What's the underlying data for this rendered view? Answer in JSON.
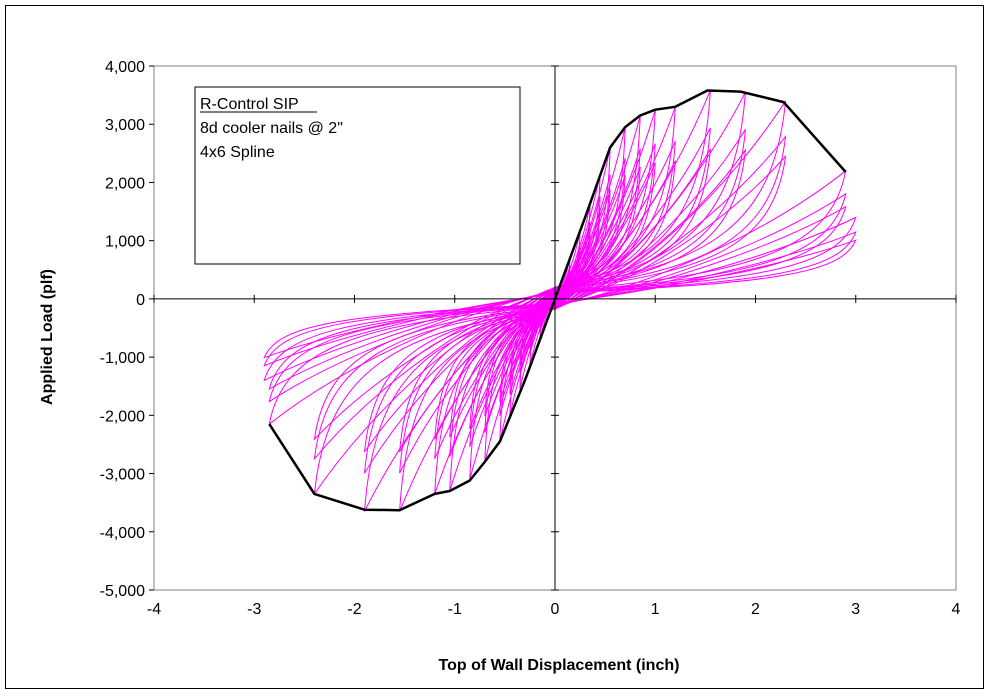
{
  "chart_data": {
    "type": "line",
    "title": "",
    "xlabel": "Top of Wall Displacement (inch)",
    "ylabel": "Applied Load (plf)",
    "xlim": [
      -4,
      4
    ],
    "ylim": [
      -5000,
      4000
    ],
    "x_ticks": [
      -4,
      -3,
      -2,
      -1,
      0,
      1,
      2,
      3,
      4
    ],
    "x_tick_labels": [
      "-4",
      "-3",
      "-2",
      "-1",
      "0",
      "1",
      "2",
      "3",
      "4"
    ],
    "y_ticks": [
      -5000,
      -4000,
      -3000,
      -2000,
      -1000,
      0,
      1000,
      2000,
      3000,
      4000
    ],
    "y_tick_labels": [
      "-5,000",
      "-4,000",
      "-3,000",
      "-2,000",
      "-1,000",
      "0",
      "1,000",
      "2,000",
      "3,000",
      "4,000"
    ],
    "grid": false,
    "annotation": {
      "lines": [
        "R-Control SIP",
        "8d cooler nails @ 2\"",
        "4x6 Spline"
      ],
      "underline_first": true
    },
    "series": [
      {
        "color": "#ff00ff",
        "style": "hysteresis-loops",
        "cycles": [
          {
            "peak_disp": 0.15,
            "peak_load": 700,
            "neg_disp": -0.15,
            "neg_load": -700
          },
          {
            "peak_disp": 0.25,
            "peak_load": 1150,
            "neg_disp": -0.25,
            "neg_load": -1150
          },
          {
            "peak_disp": 0.35,
            "peak_load": 1600,
            "neg_disp": -0.35,
            "neg_load": -1550
          },
          {
            "peak_disp": 0.45,
            "peak_load": 2150,
            "neg_disp": -0.45,
            "neg_load": -2000
          },
          {
            "peak_disp": 0.55,
            "peak_load": 2600,
            "neg_disp": -0.55,
            "neg_load": -2450
          },
          {
            "peak_disp": 0.7,
            "peak_load": 2950,
            "neg_disp": -0.7,
            "neg_load": -2800
          },
          {
            "peak_disp": 0.85,
            "peak_load": 3150,
            "neg_disp": -0.85,
            "neg_load": -3100
          },
          {
            "peak_disp": 1.0,
            "peak_load": 3250,
            "neg_disp": -1.05,
            "neg_load": -3300
          },
          {
            "peak_disp": 1.2,
            "peak_load": 3300,
            "neg_disp": -1.2,
            "neg_load": -3350
          },
          {
            "peak_disp": 1.55,
            "peak_load": 3580,
            "neg_disp": -1.55,
            "neg_load": -3650
          },
          {
            "peak_disp": 1.9,
            "peak_load": 3550,
            "neg_disp": -1.9,
            "neg_load": -3650
          },
          {
            "peak_disp": 2.3,
            "peak_load": 3400,
            "neg_disp": -2.4,
            "neg_load": -3350
          },
          {
            "peak_disp": 2.9,
            "peak_load": 2200,
            "neg_disp": -2.85,
            "neg_load": -2150
          },
          {
            "peak_disp": 3.0,
            "peak_load": 1400,
            "neg_disp": -2.9,
            "neg_load": -1400
          }
        ]
      },
      {
        "color": "#000000",
        "style": "envelope",
        "points": [
          [
            -2.85,
            -2150
          ],
          [
            -2.4,
            -3350
          ],
          [
            -1.9,
            -3620
          ],
          [
            -1.55,
            -3630
          ],
          [
            -1.2,
            -3350
          ],
          [
            -1.05,
            -3300
          ],
          [
            -0.85,
            -3120
          ],
          [
            -0.7,
            -2800
          ],
          [
            -0.55,
            -2450
          ],
          [
            -0.3,
            -1400
          ],
          [
            0,
            0
          ],
          [
            0.3,
            1400
          ],
          [
            0.55,
            2600
          ],
          [
            0.7,
            2950
          ],
          [
            0.85,
            3150
          ],
          [
            1.0,
            3250
          ],
          [
            1.2,
            3300
          ],
          [
            1.52,
            3580
          ],
          [
            1.85,
            3560
          ],
          [
            2.28,
            3380
          ],
          [
            2.9,
            2180
          ]
        ]
      }
    ]
  }
}
